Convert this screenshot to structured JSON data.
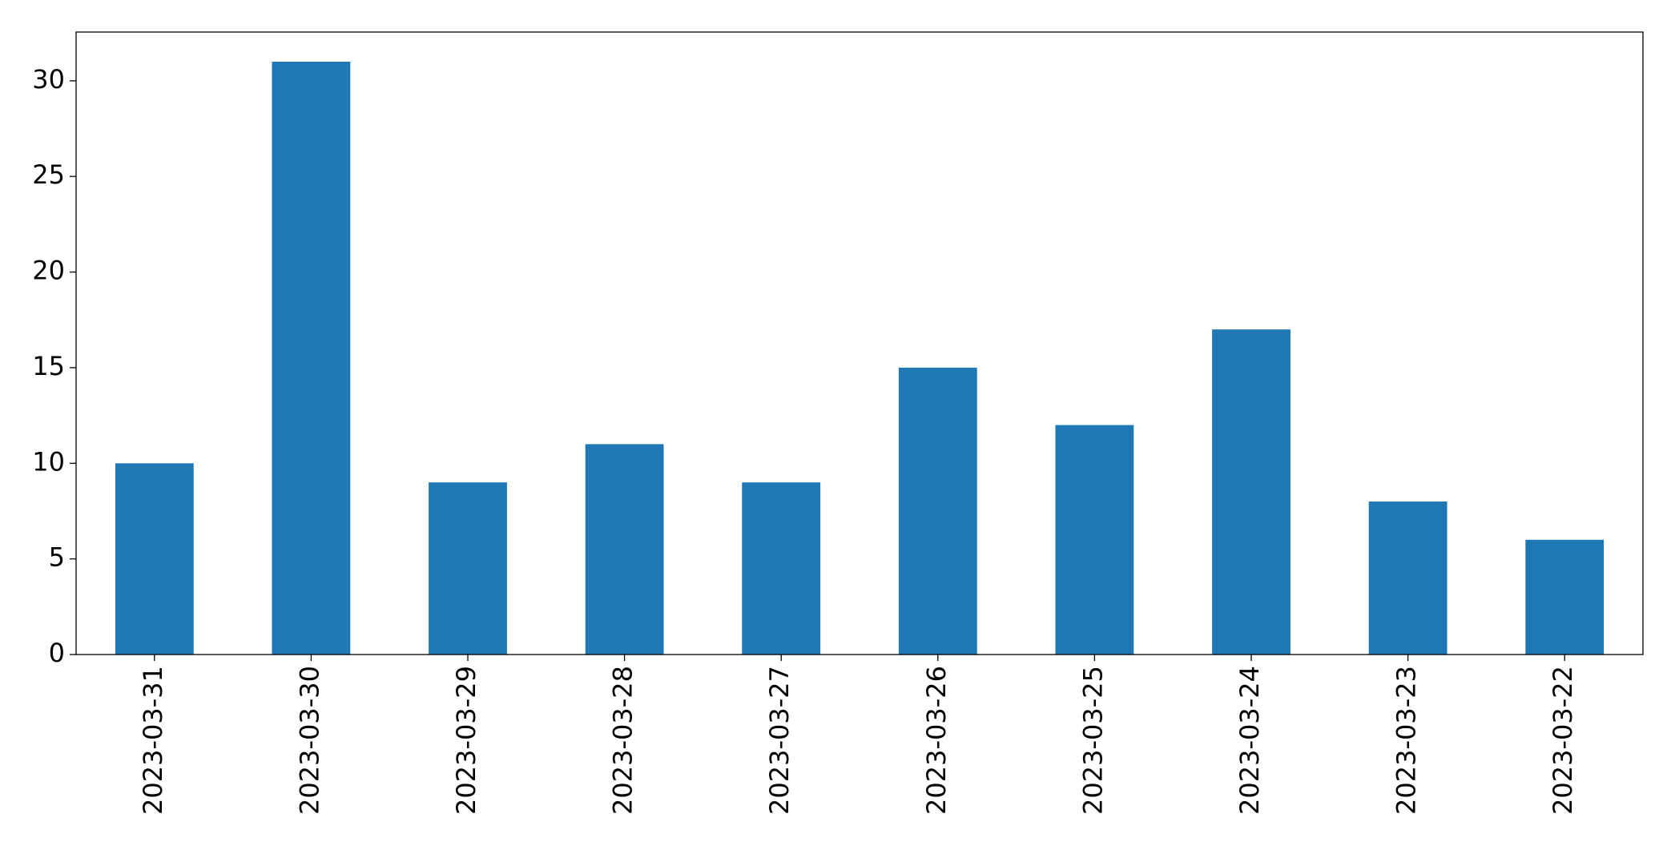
{
  "chart_data": {
    "type": "bar",
    "categories": [
      "2023-03-31",
      "2023-03-30",
      "2023-03-29",
      "2023-03-28",
      "2023-03-27",
      "2023-03-26",
      "2023-03-25",
      "2023-03-24",
      "2023-03-23",
      "2023-03-22"
    ],
    "values": [
      10,
      31,
      9,
      11,
      9,
      15,
      12,
      17,
      8,
      6
    ],
    "color": "#1f77b4",
    "ylim": [
      0,
      32.55
    ],
    "yticks": [
      0,
      5,
      10,
      15,
      20,
      25,
      30
    ],
    "grid": false
  }
}
